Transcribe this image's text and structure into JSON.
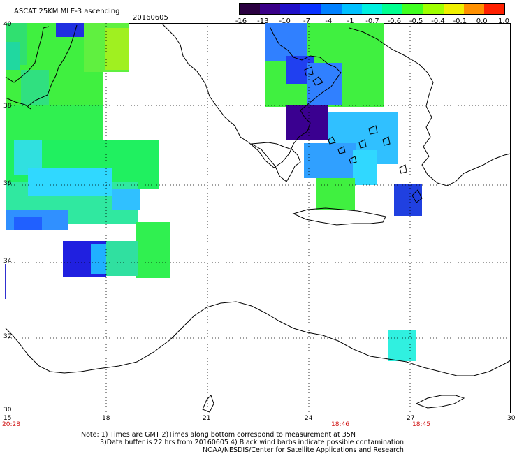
{
  "header": {
    "title": "ASCAT 25KM MLE-3 ascending",
    "date": "20160605"
  },
  "colorbar": {
    "ticks": [
      "-16",
      "-13",
      "-10",
      "-7",
      "-4",
      "-1",
      "-0.7",
      "-0.6",
      "-0.5",
      "-0.4",
      "-0.1",
      "0.0",
      "1.0"
    ],
    "colors": [
      "#2a0040",
      "#3a0088",
      "#2010c8",
      "#0830ff",
      "#0080ff",
      "#00c0ff",
      "#00f0e0",
      "#00ff90",
      "#40ff20",
      "#a0ff00",
      "#f0f000",
      "#ff9000",
      "#ff2000"
    ]
  },
  "map": {
    "lat_labels": [
      "40",
      "38",
      "36",
      "34",
      "32",
      "30"
    ],
    "lon_labels": [
      "15",
      "18",
      "21",
      "24",
      "27",
      "30"
    ],
    "time_labels": [
      "20:28",
      "18:46",
      "18:45"
    ],
    "lat_range": [
      30,
      40
    ],
    "lon_range": [
      15,
      30
    ]
  },
  "notes": {
    "line1": "Note: 1) Times are GMT 2)Times along bottom correspond to measurement at 35N",
    "line2": "3)Data buffer is 22 hrs from 20160605 4) Black wind barbs indicate possible contamination",
    "line3": "NOAA/NESDIS/Center for Satellite Applications and Research"
  }
}
